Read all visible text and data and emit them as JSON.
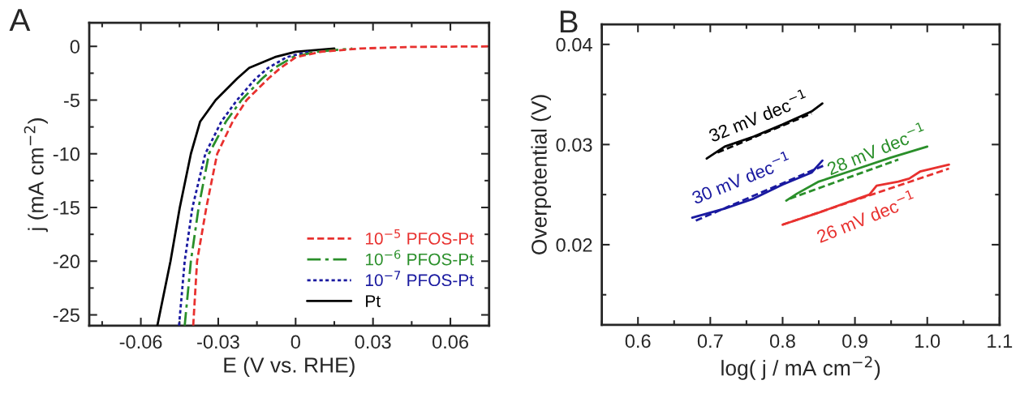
{
  "chart_data": [
    {
      "type": "line",
      "xlabel": "E (V vs. RHE)",
      "ylabel": "j (mA cm$^{−2}$)",
      "xlim": [
        -0.08,
        0.075
      ],
      "xticks": [
        -0.06,
        -0.03,
        0,
        0.03,
        0.06
      ],
      "ylim": [
        -26,
        2.2
      ],
      "yticks": [
        0,
        -5,
        -10,
        -15,
        -20,
        -25
      ],
      "legend": "bottom right",
      "grid": false,
      "annotations": [
        "A"
      ],
      "series": [
        {
          "name": "10$^{−5}$ PFOS-Pt",
          "color": "#e8312f",
          "line_style": "dashed",
          "x": [
            -0.0397,
            -0.0382,
            -0.0346,
            -0.0304,
            -0.0244,
            -0.019,
            -0.0106,
            -0.0058,
            0.0002,
            0.01,
            0.025,
            0.045,
            0.075
          ],
          "values": [
            -26,
            -20,
            -15,
            -10,
            -7,
            -5,
            -3,
            -2,
            -1,
            -0.5,
            -0.2,
            -0.05,
            0
          ]
        },
        {
          "name": "10$^{−6}$ PFOS-Pt",
          "color": "#2a8f2a",
          "line_style": "dashdot",
          "x": [
            -0.043,
            -0.0406,
            -0.0376,
            -0.0336,
            -0.027,
            -0.021,
            -0.013,
            -0.0082,
            -0.001,
            0.008,
            0.022
          ],
          "values": [
            -26,
            -20,
            -15,
            -10,
            -7,
            -5,
            -3,
            -2,
            -1,
            -0.5,
            -0.2
          ]
        },
        {
          "name": "10$^{−7}$ PFOS-Pt",
          "color": "#1a1aa0",
          "line_style": "dotted",
          "x": [
            -0.0452,
            -0.043,
            -0.04,
            -0.035,
            -0.0288,
            -0.0227,
            -0.0155,
            -0.0106,
            -0.0034,
            0.005
          ],
          "values": [
            -26,
            -20,
            -15,
            -10,
            -7,
            -5,
            -3,
            -2,
            -1,
            -0.5
          ]
        },
        {
          "name": "Pt",
          "color": "#000000",
          "line_style": "solid",
          "x": [
            -0.0536,
            -0.0485,
            -0.0449,
            -0.0406,
            -0.037,
            -0.031,
            -0.0227,
            -0.018,
            -0.008,
            0.0,
            0.015
          ],
          "values": [
            -26,
            -20,
            -15,
            -10,
            -7,
            -5,
            -3,
            -2,
            -1,
            -0.5,
            -0.2
          ]
        }
      ]
    },
    {
      "type": "line",
      "xlabel": "log( j / mA cm$^{−2}$)",
      "ylabel": "Overpotential (V)",
      "xlim": [
        0.55,
        1.1
      ],
      "xticks": [
        0.6,
        0.7,
        0.8,
        0.9,
        {
          "value": 1.0,
          "label": "1.0"
        },
        1.1
      ],
      "ylim": [
        0.012,
        0.042
      ],
      "yticks": [
        0.02,
        0.03,
        0.04
      ],
      "legend": false,
      "grid": false,
      "annotations": [
        "B",
        {
          "text": "26 mV dec$^{−1}$",
          "x": 0.92,
          "y": 0.025
        },
        {
          "text": "28 mV dec$^{−1}$",
          "x": 0.9,
          "y": 0.0275
        },
        {
          "text": "30 mV dec$^{−1}$",
          "x": 0.76,
          "y": 0.0246
        },
        {
          "text": "32 mV dec$^{−1}$",
          "x": 0.76,
          "y": 0.0308
        }
      ],
      "series": [
        {
          "color": "#e8312f",
          "line_style": "solid",
          "x": [
            0.8,
            0.85,
            0.9,
            0.92,
            0.93,
            0.96,
            0.975,
            0.99,
            1.03
          ],
          "values": [
            0.022,
            0.0232,
            0.0245,
            0.025,
            0.0259,
            0.0263,
            0.0266,
            0.0273,
            0.028
          ]
        },
        {
          "color": "#2a8f2a",
          "line_style": "solid",
          "x": [
            0.805,
            0.82,
            0.85,
            0.9,
            0.95,
            1.0
          ],
          "values": [
            0.0244,
            0.0251,
            0.0263,
            0.0275,
            0.0287,
            0.0298
          ]
        },
        {
          "color": "#1a1aa0",
          "line_style": "solid",
          "x": [
            0.675,
            0.72,
            0.76,
            0.8,
            0.84,
            0.855
          ],
          "values": [
            0.0227,
            0.0236,
            0.0246,
            0.026,
            0.0272,
            0.0284
          ]
        },
        {
          "color": "#000000",
          "line_style": "solid",
          "x": [
            0.695,
            0.72,
            0.76,
            0.8,
            0.84,
            0.855
          ],
          "values": [
            0.0286,
            0.0298,
            0.0308,
            0.032,
            0.0333,
            0.0341
          ]
        },
        {
          "color": "#e8312f",
          "line_style": "dashed",
          "x": [
            0.8,
            1.03
          ],
          "values": [
            0.022,
            0.0276
          ]
        },
        {
          "color": "#2a8f2a",
          "line_style": "dashed",
          "x": [
            0.81,
            0.96
          ],
          "values": [
            0.0246,
            0.0285
          ]
        },
        {
          "color": "#1a1aa0",
          "line_style": "dashed",
          "x": [
            0.68,
            0.86
          ],
          "values": [
            0.0224,
            0.028
          ]
        },
        {
          "color": "#000000",
          "line_style": "dashed",
          "x": [
            0.71,
            0.84
          ],
          "values": [
            0.0292,
            0.0331
          ]
        }
      ]
    }
  ]
}
